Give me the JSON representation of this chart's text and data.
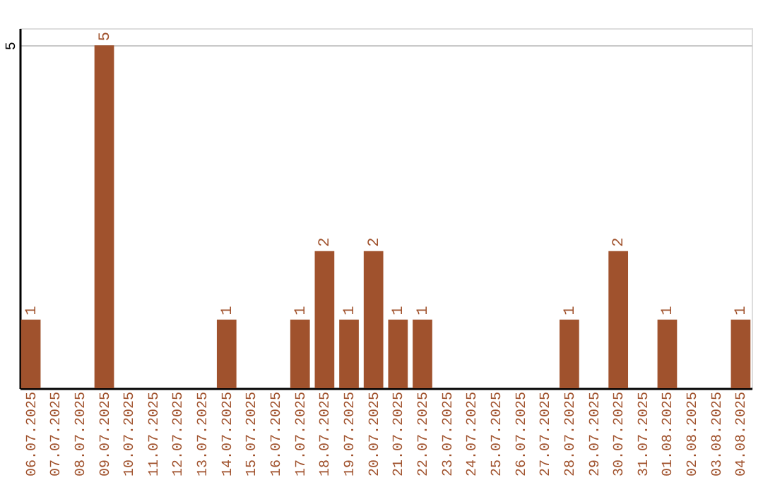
{
  "chart_data": {
    "type": "bar",
    "categories": [
      "06.07.2025",
      "07.07.2025",
      "08.07.2025",
      "09.07.2025",
      "10.07.2025",
      "11.07.2025",
      "12.07.2025",
      "13.07.2025",
      "14.07.2025",
      "15.07.2025",
      "16.07.2025",
      "17.07.2025",
      "18.07.2025",
      "19.07.2025",
      "20.07.2025",
      "21.07.2025",
      "22.07.2025",
      "23.07.2025",
      "24.07.2025",
      "25.07.2025",
      "26.07.2025",
      "27.07.2025",
      "28.07.2025",
      "29.07.2025",
      "30.07.2025",
      "31.07.2025",
      "01.08.2025",
      "02.08.2025",
      "03.08.2025",
      "04.08.2025"
    ],
    "values": [
      1,
      0,
      0,
      5,
      0,
      0,
      0,
      0,
      1,
      0,
      0,
      1,
      2,
      1,
      2,
      1,
      1,
      0,
      0,
      0,
      0,
      0,
      1,
      0,
      2,
      0,
      1,
      0,
      0,
      1
    ],
    "value_labels": [
      "1",
      null,
      null,
      "5",
      null,
      null,
      null,
      null,
      "1",
      null,
      null,
      "1",
      "2",
      "1",
      "2",
      "1",
      "1",
      null,
      null,
      null,
      null,
      null,
      "1",
      null,
      "2",
      null,
      "1",
      null,
      null,
      "1"
    ],
    "color": "#a0522d",
    "ylim": [
      0,
      5.25
    ],
    "yticks": [
      5
    ],
    "grid": "y"
  }
}
